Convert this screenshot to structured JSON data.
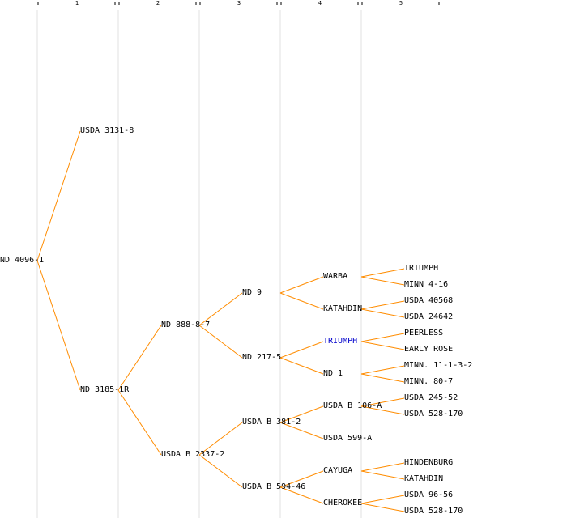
{
  "generation_labels": [
    "1",
    "2",
    "3",
    "4",
    "5"
  ],
  "colors": {
    "edge": "#ff8c00",
    "text": "#000000",
    "highlight": "#0000cc",
    "band": "#f0f0f0"
  },
  "nodes": [
    {
      "id": "n0",
      "gen": 0,
      "label": "ND 4096-1"
    },
    {
      "id": "n1",
      "gen": 1,
      "label": "USDA 3131-8"
    },
    {
      "id": "n2",
      "gen": 1,
      "label": "ND 3185-1R"
    },
    {
      "id": "n3",
      "gen": 2,
      "label": "ND 888-8-7"
    },
    {
      "id": "n4",
      "gen": 2,
      "label": "USDA B 2337-2"
    },
    {
      "id": "n5",
      "gen": 3,
      "label": "ND 9"
    },
    {
      "id": "n6",
      "gen": 3,
      "label": "ND 217-5"
    },
    {
      "id": "n7",
      "gen": 3,
      "label": "USDA B 381-2"
    },
    {
      "id": "n8",
      "gen": 3,
      "label": "USDA B 594-46"
    },
    {
      "id": "n9",
      "gen": 4,
      "label": "WARBA"
    },
    {
      "id": "n10",
      "gen": 4,
      "label": "KATAHDIN"
    },
    {
      "id": "n11",
      "gen": 4,
      "label": "TRIUMPH",
      "highlight": true
    },
    {
      "id": "n12",
      "gen": 4,
      "label": "ND 1"
    },
    {
      "id": "n13",
      "gen": 4,
      "label": "USDA B 106-A"
    },
    {
      "id": "n14",
      "gen": 4,
      "label": "USDA 599-A"
    },
    {
      "id": "n15",
      "gen": 4,
      "label": "CAYUGA"
    },
    {
      "id": "n16",
      "gen": 4,
      "label": "CHEROKEE"
    },
    {
      "id": "n17",
      "gen": 5,
      "label": "TRIUMPH"
    },
    {
      "id": "n18",
      "gen": 5,
      "label": "MINN 4-16"
    },
    {
      "id": "n19",
      "gen": 5,
      "label": "USDA 40568"
    },
    {
      "id": "n20",
      "gen": 5,
      "label": "USDA 24642"
    },
    {
      "id": "n21",
      "gen": 5,
      "label": "PEERLESS"
    },
    {
      "id": "n22",
      "gen": 5,
      "label": "EARLY ROSE"
    },
    {
      "id": "n23",
      "gen": 5,
      "label": "MINN. 11-1-3-2"
    },
    {
      "id": "n24",
      "gen": 5,
      "label": "MINN. 80-7"
    },
    {
      "id": "n25",
      "gen": 5,
      "label": "USDA 245-52"
    },
    {
      "id": "n26",
      "gen": 5,
      "label": "USDA 528-170"
    },
    {
      "id": "n27",
      "gen": 5,
      "label": "HINDENBURG"
    },
    {
      "id": "n28",
      "gen": 5,
      "label": "KATAHDIN"
    },
    {
      "id": "n29",
      "gen": 5,
      "label": "USDA 96-56"
    },
    {
      "id": "n30",
      "gen": 5,
      "label": "USDA 528-170"
    }
  ],
  "edges": [
    [
      "n0",
      "n1"
    ],
    [
      "n0",
      "n2"
    ],
    [
      "n2",
      "n3"
    ],
    [
      "n2",
      "n4"
    ],
    [
      "n3",
      "n5"
    ],
    [
      "n3",
      "n6"
    ],
    [
      "n4",
      "n7"
    ],
    [
      "n4",
      "n8"
    ],
    [
      "n5",
      "n9"
    ],
    [
      "n5",
      "n10"
    ],
    [
      "n6",
      "n11"
    ],
    [
      "n6",
      "n12"
    ],
    [
      "n7",
      "n13"
    ],
    [
      "n7",
      "n14"
    ],
    [
      "n8",
      "n15"
    ],
    [
      "n8",
      "n16"
    ],
    [
      "n9",
      "n17"
    ],
    [
      "n9",
      "n18"
    ],
    [
      "n10",
      "n19"
    ],
    [
      "n10",
      "n20"
    ],
    [
      "n11",
      "n21"
    ],
    [
      "n11",
      "n22"
    ],
    [
      "n12",
      "n23"
    ],
    [
      "n12",
      "n24"
    ],
    [
      "n13",
      "n25"
    ],
    [
      "n13",
      "n26"
    ],
    [
      "n15",
      "n27"
    ],
    [
      "n15",
      "n28"
    ],
    [
      "n16",
      "n29"
    ],
    [
      "n16",
      "n30"
    ]
  ]
}
